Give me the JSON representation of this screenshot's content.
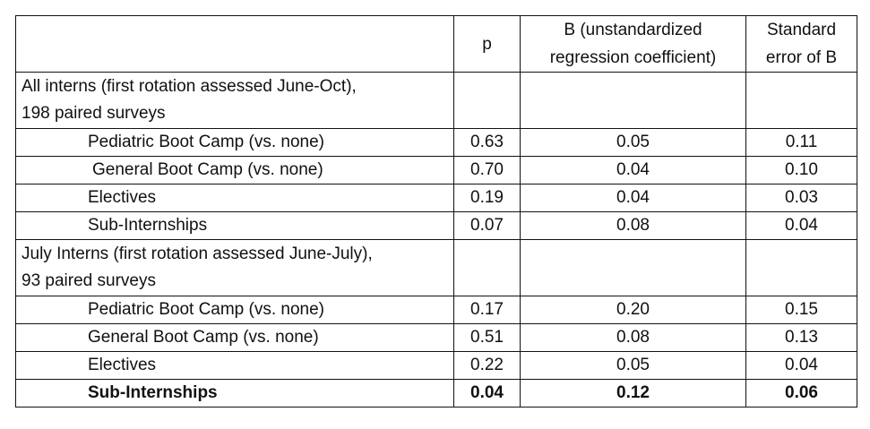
{
  "table": {
    "headers": {
      "label": "",
      "p": "p",
      "b_line1": "B (unstandardized",
      "b_line2": "regression coefficient)",
      "se_line1": "Standard",
      "se_line2": "error of B"
    },
    "groups": [
      {
        "title_line1": "All interns (first rotation assessed June-Oct),",
        "title_line2": "198 paired surveys",
        "rows": [
          {
            "label": "Pediatric Boot Camp (vs. none)",
            "p": "0.63",
            "b": "0.05",
            "se": "0.11"
          },
          {
            "label": "General Boot Camp (vs. none)",
            "p": "0.70",
            "b": "0.04",
            "se": "0.10"
          },
          {
            "label": "Electives",
            "p": "0.19",
            "b": "0.04",
            "se": "0.03"
          },
          {
            "label": "Sub-Internships",
            "p": "0.07",
            "b": "0.08",
            "se": "0.04"
          }
        ]
      },
      {
        "title_line1": "July Interns (first rotation assessed June-July),",
        "title_line2": "93 paired surveys",
        "rows": [
          {
            "label": "Pediatric Boot Camp (vs. none)",
            "p": "0.17",
            "b": "0.20",
            "se": "0.15"
          },
          {
            "label": "General Boot Camp (vs. none)",
            "p": "0.51",
            "b": "0.08",
            "se": "0.13"
          },
          {
            "label": "Electives",
            "p": "0.22",
            "b": "0.05",
            "se": "0.04"
          },
          {
            "label": "Sub-Internships",
            "p": "0.04",
            "b": "0.12",
            "se": "0.06"
          }
        ]
      }
    ]
  }
}
